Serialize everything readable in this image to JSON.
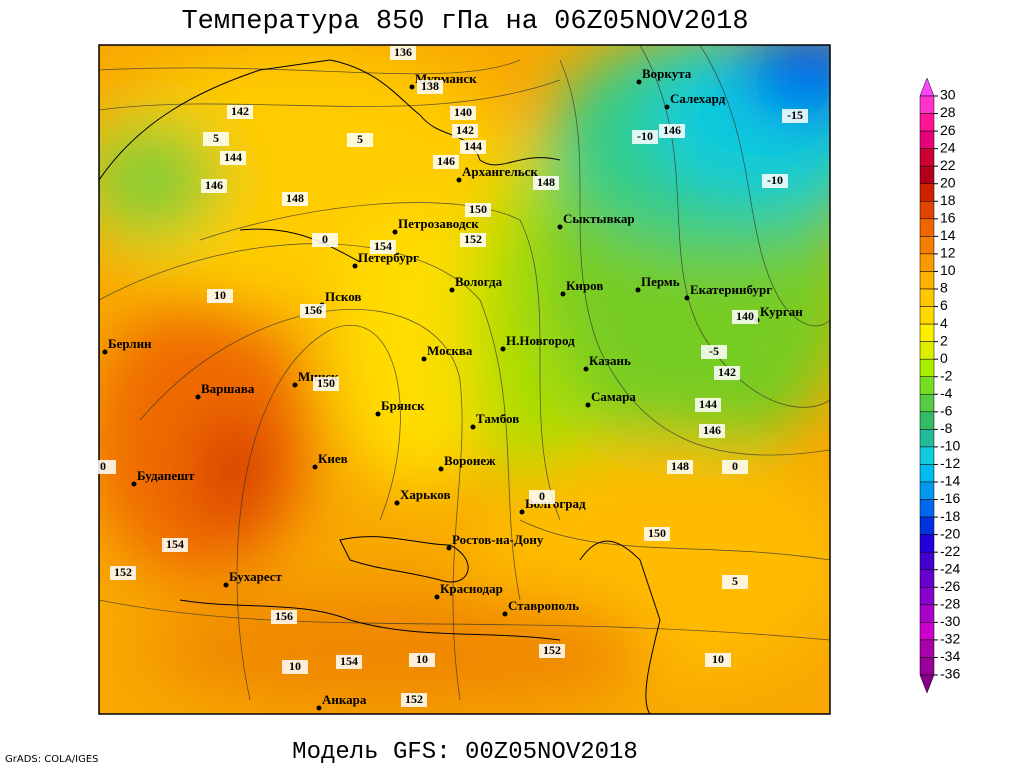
{
  "title": "Температура 850 гПа на 06Z05NOV2018",
  "model": "Модель GFS: 00Z05NOV2018",
  "credit": "GrADS: COLA/IGES",
  "cities": [
    "Мурманск",
    "Воркута",
    "Салехард",
    "Архангельск",
    "Сыктывкар",
    "Петрозаводск",
    "Петербург",
    "Вологда",
    "Киров",
    "Пермь",
    "Екатеринбург",
    "Курган",
    "Псков",
    "Берлин",
    "Н.Новгород",
    "Москва",
    "Казань",
    "Минск",
    "Варшава",
    "Самара",
    "Брянск",
    "Тамбов",
    "Киев",
    "Воронеж",
    "Будапешт",
    "Харьков",
    "Волгоград",
    "Ростов-на-Дону",
    "Бухарест",
    "Краснодар",
    "Ставрополь",
    "Анкара"
  ],
  "contour_labels": [
    136,
    138,
    142,
    140,
    142,
    146,
    -10,
    -15,
    144,
    144,
    146,
    146,
    148,
    -10,
    148,
    150,
    152,
    154,
    140,
    -5,
    156,
    142,
    150,
    144,
    146,
    148,
    154,
    150,
    152,
    156,
    154,
    152,
    152,
    10,
    10,
    10,
    10,
    5,
    5,
    0,
    0,
    0,
    0,
    5
  ],
  "colorbar": {
    "ticks": [
      30,
      28,
      26,
      24,
      22,
      20,
      18,
      16,
      14,
      12,
      10,
      8,
      6,
      4,
      2,
      0,
      -2,
      -4,
      -6,
      -8,
      -10,
      -12,
      -14,
      -16,
      -18,
      -20,
      -22,
      -24,
      -26,
      -28,
      -30,
      -32,
      -34,
      -36
    ],
    "colors": [
      "#ff44ff",
      "#ff33cc",
      "#ff1493",
      "#e6007a",
      "#cc0033",
      "#b3001a",
      "#cc2200",
      "#e04400",
      "#ee6600",
      "#f57f00",
      "#f99a00",
      "#ffb000",
      "#ffc800",
      "#ffd800",
      "#ffee00",
      "#ddee00",
      "#aaee00",
      "#77dd22",
      "#55cc44",
      "#33bb66",
      "#22bb99",
      "#11ccdd",
      "#00bbee",
      "#0099ee",
      "#0066ee",
      "#0033dd",
      "#2200dd",
      "#4400cc",
      "#6600cc",
      "#8800cc",
      "#aa00cc",
      "#cc00cc",
      "#aa00aa",
      "#990099",
      "#880088"
    ]
  }
}
